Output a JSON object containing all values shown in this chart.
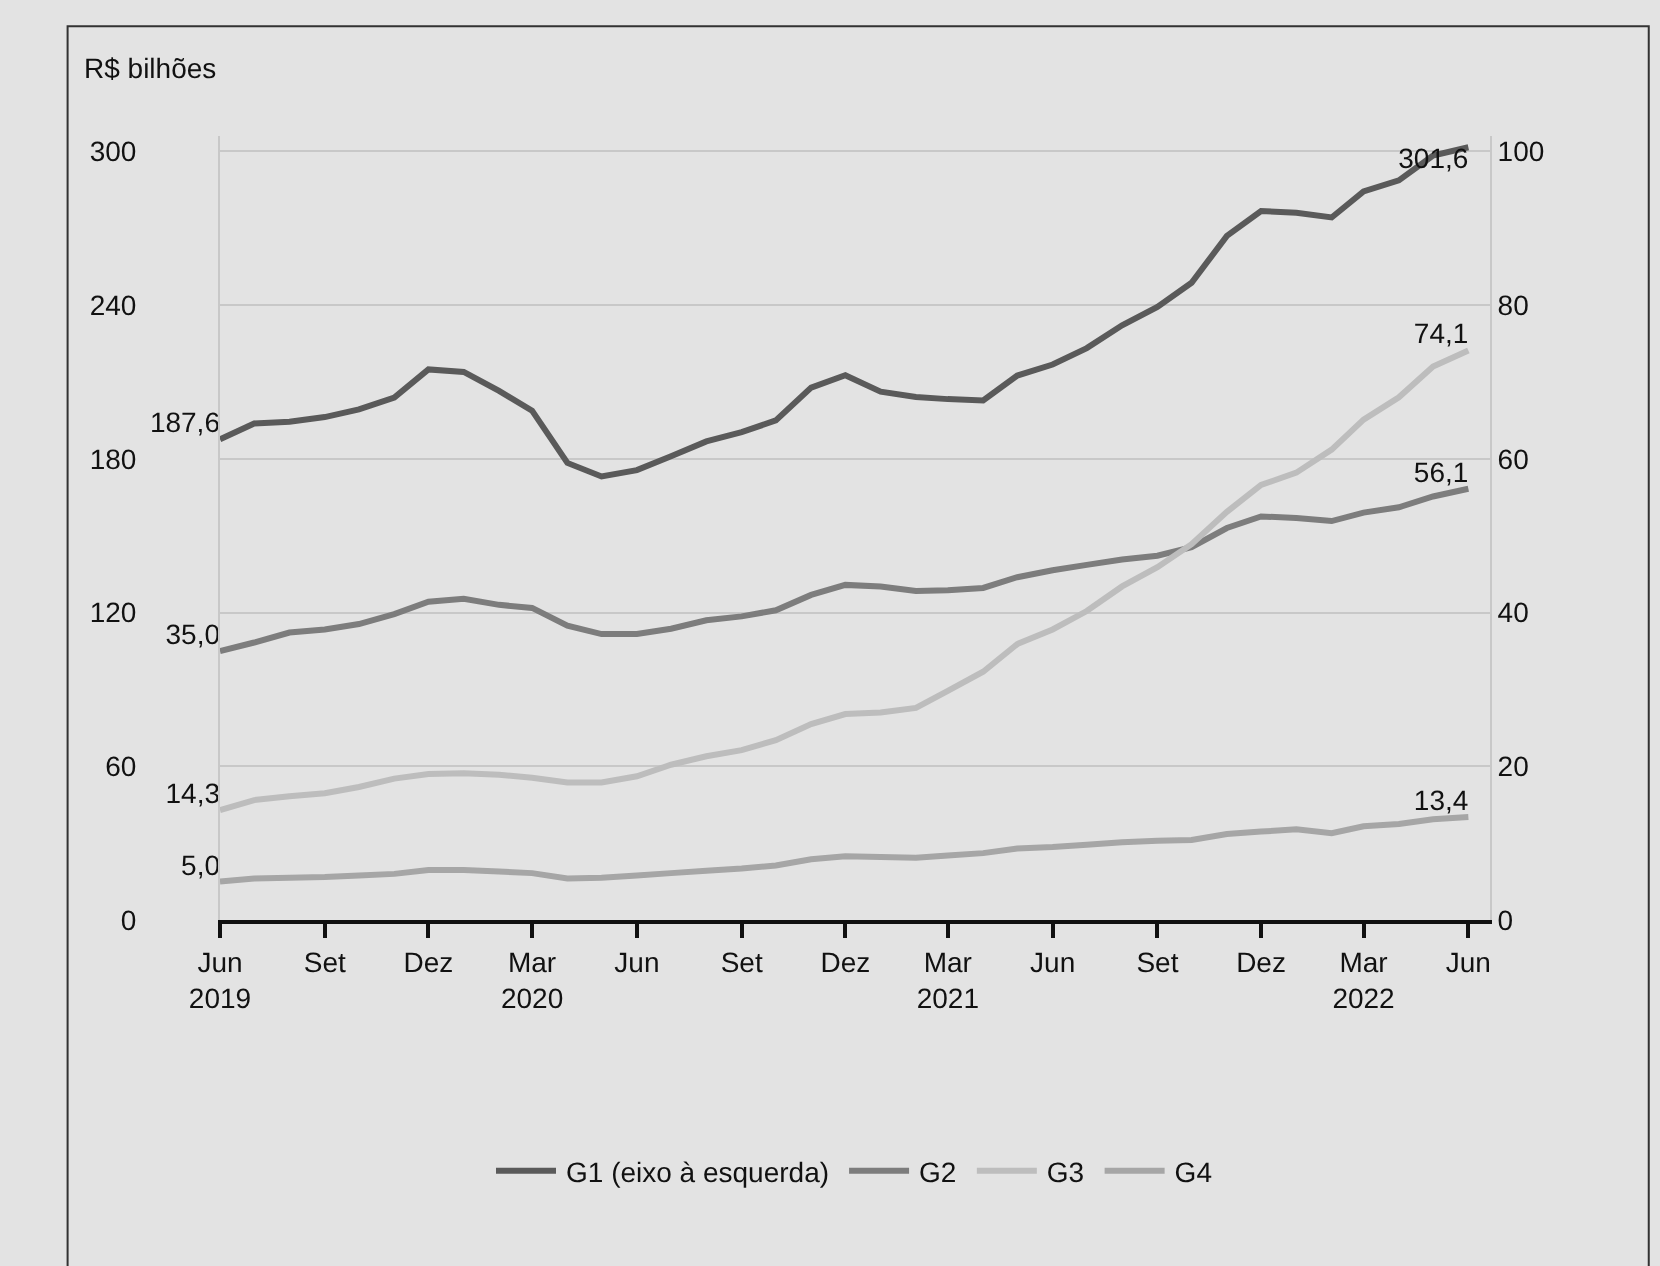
{
  "chart_data": {
    "type": "line",
    "ylabel": "R$ bilhões",
    "x": [
      "2019-06",
      "2019-07",
      "2019-08",
      "2019-09",
      "2019-10",
      "2019-11",
      "2019-12",
      "2020-01",
      "2020-02",
      "2020-03",
      "2020-04",
      "2020-05",
      "2020-06",
      "2020-07",
      "2020-08",
      "2020-09",
      "2020-10",
      "2020-11",
      "2020-12",
      "2021-01",
      "2021-02",
      "2021-03",
      "2021-04",
      "2021-05",
      "2021-06",
      "2021-07",
      "2021-08",
      "2021-09",
      "2021-10",
      "2021-11",
      "2021-12",
      "2022-01",
      "2022-02",
      "2022-03",
      "2022-04",
      "2022-05",
      "2022-06"
    ],
    "series": [
      {
        "name": "G1 (eixo à esquerda)",
        "color": "#5a5a5a",
        "values": [
          187.6,
          193.8,
          194.5,
          196.3,
          199.3,
          203.9,
          214.9,
          213.9,
          206.5,
          198.8,
          178.4,
          173.1,
          175.6,
          181.0,
          186.8,
          190.4,
          195.0,
          207.8,
          212.6,
          206.2,
          204.1,
          203.3,
          202.8,
          212.5,
          216.8,
          223.2,
          232.1,
          239.3,
          248.7,
          267.0,
          276.7,
          276.0,
          274.2,
          284.4,
          288.7,
          298.4,
          301.6
        ],
        "value_labels": [
          "187,6",
          null,
          null,
          null,
          null,
          null,
          null,
          null,
          null,
          null,
          null,
          null,
          null,
          null,
          null,
          null,
          null,
          null,
          null,
          null,
          null,
          null,
          null,
          null,
          null,
          null,
          null,
          null,
          null,
          null,
          null,
          null,
          null,
          null,
          null,
          null,
          "301,6"
        ]
      },
      {
        "name": "G2",
        "color": "#7d7d7d",
        "axis": "y2",
        "values": [
          35.0,
          36.1,
          37.4,
          37.8,
          38.5,
          39.8,
          41.4,
          41.8,
          41.0,
          40.6,
          38.3,
          37.2,
          37.2,
          37.9,
          39.0,
          39.5,
          40.3,
          42.3,
          43.6,
          43.4,
          42.8,
          42.9,
          43.2,
          44.6,
          45.5,
          46.2,
          46.9,
          47.4,
          48.5,
          51.0,
          52.5,
          52.3,
          51.9,
          53.0,
          53.7,
          55.1,
          56.1
        ],
        "value_labels": [
          "35,0",
          null,
          null,
          null,
          null,
          null,
          null,
          null,
          null,
          null,
          null,
          null,
          null,
          null,
          null,
          null,
          null,
          null,
          null,
          null,
          null,
          null,
          null,
          null,
          null,
          null,
          null,
          null,
          null,
          null,
          null,
          null,
          null,
          null,
          null,
          null,
          "56,1"
        ]
      },
      {
        "name": "G3",
        "color": "#bdbdbd",
        "axis": "y2",
        "values": [
          14.3,
          15.6,
          16.1,
          16.5,
          17.3,
          18.4,
          19.0,
          19.1,
          18.9,
          18.5,
          17.9,
          17.9,
          18.7,
          20.2,
          21.3,
          22.1,
          23.4,
          25.5,
          26.8,
          27.0,
          27.6,
          29.8,
          32.3,
          35.9,
          37.8,
          40.2,
          43.4,
          45.9,
          48.9,
          53.1,
          56.6,
          58.2,
          61.2,
          65.1,
          68.0,
          72.0,
          74.1
        ],
        "value_labels": [
          "14,3",
          null,
          null,
          null,
          null,
          null,
          null,
          null,
          null,
          null,
          null,
          null,
          null,
          null,
          null,
          null,
          null,
          null,
          null,
          null,
          null,
          null,
          null,
          null,
          null,
          null,
          null,
          null,
          null,
          null,
          null,
          null,
          null,
          null,
          null,
          null,
          "74,1"
        ]
      },
      {
        "name": "G4",
        "color": "#a6a6a6",
        "axis": "y2",
        "values": [
          5.0,
          5.4,
          5.5,
          5.6,
          5.8,
          6.0,
          6.5,
          6.5,
          6.3,
          6.1,
          5.4,
          5.5,
          5.8,
          6.1,
          6.4,
          6.7,
          7.1,
          7.9,
          8.3,
          8.2,
          8.1,
          8.4,
          8.7,
          9.3,
          9.5,
          9.8,
          10.1,
          10.3,
          10.4,
          11.2,
          11.5,
          11.8,
          11.3,
          12.2,
          12.5,
          13.1,
          13.4
        ],
        "value_labels": [
          "5,0",
          null,
          null,
          null,
          null,
          null,
          null,
          null,
          null,
          null,
          null,
          null,
          null,
          null,
          null,
          null,
          null,
          null,
          null,
          null,
          null,
          null,
          null,
          null,
          null,
          null,
          null,
          null,
          null,
          null,
          null,
          null,
          null,
          null,
          null,
          null,
          "13,4"
        ]
      }
    ],
    "xlim": [
      "2019-06",
      "2022-06-20"
    ],
    "xticks": [
      {
        "value": "2019-06",
        "label": "Jun\n2019"
      },
      {
        "value": "2019-09",
        "label": "Set"
      },
      {
        "value": "2019-12",
        "label": "Dez"
      },
      {
        "value": "2020-03",
        "label": "Mar\n2020"
      },
      {
        "value": "2020-06",
        "label": "Jun"
      },
      {
        "value": "2020-09",
        "label": "Set"
      },
      {
        "value": "2020-12",
        "label": "Dez"
      },
      {
        "value": "2021-03",
        "label": "Mar\n2021"
      },
      {
        "value": "2021-06",
        "label": "Jun"
      },
      {
        "value": "2021-09",
        "label": "Set"
      },
      {
        "value": "2021-12",
        "label": "Dez"
      },
      {
        "value": "2022-03",
        "label": "Mar\n2022"
      },
      {
        "value": "2022-06",
        "label": "Jun"
      }
    ],
    "ylim": [
      0,
      306
    ],
    "yticks": [
      0,
      60,
      120,
      180,
      240,
      300
    ],
    "y2lim": [
      0,
      102
    ],
    "y2ticks": [
      0,
      20,
      40,
      60,
      80,
      100
    ],
    "grid": "y",
    "legend": "bottom",
    "marker": "none",
    "line_style": "solid"
  }
}
